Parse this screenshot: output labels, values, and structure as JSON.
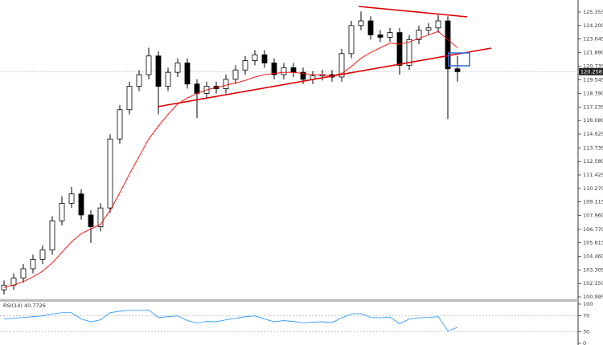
{
  "chart_data": [
    {
      "type": "candlestick",
      "open": [
        101.6,
        102.0,
        102.6,
        103.4,
        104.2,
        105.0,
        107.5,
        109.0,
        109.8,
        108.0,
        107.0,
        108.6,
        114.5,
        117.0,
        119.0,
        120.0,
        121.6,
        119.0,
        120.2,
        121.0,
        119.2,
        118.4,
        119.0,
        118.8,
        119.6,
        120.4,
        121.2,
        121.7,
        121.0,
        120.0,
        120.6,
        120.2,
        119.6,
        119.9,
        120.0,
        119.8,
        121.8,
        124.2,
        124.6,
        123.4,
        123.2,
        123.6,
        120.8,
        123.0,
        123.8,
        124.0,
        124.6,
        120.5
      ],
      "high": [
        102.4,
        103.0,
        103.8,
        104.6,
        105.4,
        107.9,
        109.6,
        110.4,
        110.2,
        108.4,
        109.0,
        114.9,
        117.4,
        119.4,
        120.4,
        122.3,
        122.0,
        120.6,
        121.4,
        121.4,
        119.6,
        119.4,
        119.4,
        120.0,
        120.8,
        121.6,
        122.1,
        122.1,
        121.4,
        121.0,
        121.0,
        120.6,
        120.3,
        120.4,
        120.4,
        122.2,
        124.6,
        125.4,
        125.0,
        123.8,
        124.0,
        124.0,
        123.4,
        124.2,
        124.4,
        125.1,
        125.0,
        121.6
      ],
      "low": [
        101.2,
        101.6,
        102.2,
        103.0,
        103.8,
        104.6,
        107.1,
        108.6,
        107.6,
        105.6,
        106.6,
        108.2,
        114.1,
        116.6,
        118.6,
        119.6,
        116.6,
        118.6,
        119.8,
        118.8,
        116.3,
        118.0,
        118.4,
        118.4,
        119.2,
        120.0,
        120.8,
        120.6,
        119.6,
        119.6,
        119.8,
        119.2,
        119.2,
        119.5,
        119.4,
        119.4,
        121.4,
        123.8,
        123.0,
        122.8,
        122.8,
        120.0,
        120.4,
        122.6,
        123.4,
        123.6,
        116.2,
        119.4
      ],
      "close": [
        102.0,
        102.6,
        103.4,
        104.2,
        105.0,
        107.5,
        109.0,
        109.8,
        108.0,
        107.0,
        108.6,
        114.5,
        117.0,
        119.0,
        120.0,
        121.6,
        119.0,
        120.2,
        121.0,
        119.2,
        118.4,
        119.0,
        118.8,
        119.6,
        120.4,
        121.2,
        121.7,
        121.0,
        120.0,
        120.6,
        120.2,
        119.6,
        119.9,
        120.0,
        119.8,
        121.8,
        124.2,
        124.6,
        123.4,
        123.2,
        123.6,
        120.8,
        123.0,
        123.8,
        124.0,
        124.6,
        120.5,
        120.258
      ],
      "ma": {
        "color": "#ff0000",
        "values": [
          101.8,
          102.0,
          102.3,
          102.7,
          103.2,
          103.9,
          104.8,
          105.7,
          106.4,
          106.8,
          107.2,
          108.4,
          109.9,
          111.5,
          113.0,
          114.5,
          115.6,
          116.6,
          117.5,
          118.0,
          118.4,
          118.7,
          118.9,
          119.1,
          119.3,
          119.5,
          119.8,
          120.0,
          120.1,
          120.2,
          120.2,
          120.1,
          120.0,
          120.0,
          119.9,
          120.1,
          120.7,
          121.4,
          121.9,
          122.3,
          122.7,
          122.6,
          122.8,
          123.1,
          123.4,
          123.7,
          123.0,
          122.3
        ]
      },
      "ylim": [
        100.79,
        126.18
      ],
      "yticks": [
        {
          "value": 125.355,
          "label": "125.355"
        },
        {
          "value": 124.2,
          "label": "124.200"
        },
        {
          "value": 123.045,
          "label": "123.045"
        },
        {
          "value": 121.89,
          "label": "121.890"
        },
        {
          "value": 120.735,
          "label": "120.735"
        },
        {
          "value": 119.545,
          "label": "119.545"
        },
        {
          "value": 118.39,
          "label": "118.390"
        },
        {
          "value": 117.235,
          "label": "117.235"
        },
        {
          "value": 116.08,
          "label": "116.080"
        },
        {
          "value": 114.925,
          "label": "114.925"
        },
        {
          "value": 113.735,
          "label": "113.735"
        },
        {
          "value": 112.58,
          "label": "112.580"
        },
        {
          "value": 111.425,
          "label": "111.425"
        },
        {
          "value": 110.27,
          "label": "110.270"
        },
        {
          "value": 109.115,
          "label": "109.115"
        },
        {
          "value": 107.96,
          "label": "107.960"
        },
        {
          "value": 106.77,
          "label": "106.770"
        },
        {
          "value": 105.615,
          "label": "105.615"
        },
        {
          "value": 104.46,
          "label": "104.460"
        },
        {
          "value": 103.305,
          "label": "103.305"
        },
        {
          "value": 102.15,
          "label": "102.150"
        },
        {
          "value": 100.995,
          "label": "100.995"
        }
      ],
      "current_price": {
        "value": 120.258,
        "label": "120.258"
      }
    },
    {
      "type": "line",
      "title": "RSI(14) 40.7726",
      "color": "#1e90ff",
      "values": [
        62,
        64,
        66,
        68,
        70,
        75,
        78,
        78,
        62,
        55,
        60,
        78,
        82,
        84,
        84,
        85,
        66,
        68,
        70,
        58,
        52,
        56,
        55,
        60,
        64,
        68,
        70,
        62,
        55,
        58,
        56,
        52,
        54,
        55,
        53,
        65,
        75,
        76,
        66,
        65,
        67,
        50,
        62,
        65,
        66,
        68,
        32,
        40.7726
      ],
      "ylim": [
        0,
        100
      ],
      "yticks": [
        100,
        70,
        30,
        0
      ]
    }
  ]
}
